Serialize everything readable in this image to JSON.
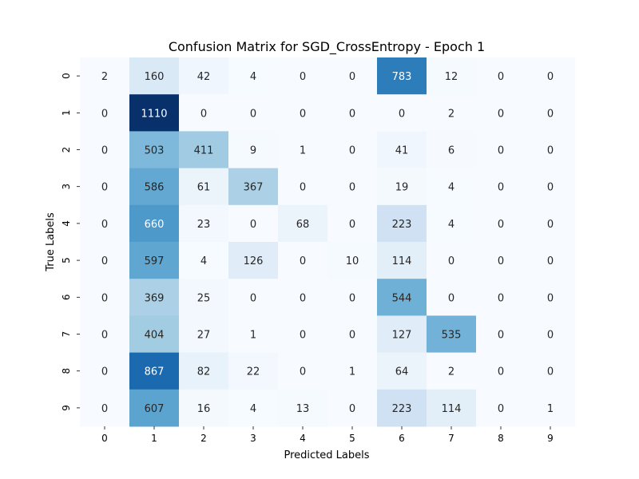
{
  "chart_data": {
    "type": "heatmap",
    "title": "Confusion Matrix for SGD_CrossEntropy - Epoch 1",
    "xlabel": "Predicted Labels",
    "ylabel": "True Labels",
    "x_categories": [
      "0",
      "1",
      "2",
      "3",
      "4",
      "5",
      "6",
      "7",
      "8",
      "9"
    ],
    "y_categories": [
      "0",
      "1",
      "2",
      "3",
      "4",
      "5",
      "6",
      "7",
      "8",
      "9"
    ],
    "matrix": [
      [
        2,
        160,
        42,
        4,
        0,
        0,
        783,
        12,
        0,
        0
      ],
      [
        0,
        1110,
        0,
        0,
        0,
        0,
        0,
        2,
        0,
        0
      ],
      [
        0,
        503,
        411,
        9,
        1,
        0,
        41,
        6,
        0,
        0
      ],
      [
        0,
        586,
        61,
        367,
        0,
        0,
        19,
        4,
        0,
        0
      ],
      [
        0,
        660,
        23,
        0,
        68,
        0,
        223,
        4,
        0,
        0
      ],
      [
        0,
        597,
        4,
        126,
        0,
        10,
        114,
        0,
        0,
        0
      ],
      [
        0,
        369,
        25,
        0,
        0,
        0,
        544,
        0,
        0,
        0
      ],
      [
        0,
        404,
        27,
        1,
        0,
        0,
        127,
        535,
        0,
        0
      ],
      [
        0,
        867,
        82,
        22,
        0,
        1,
        64,
        2,
        0,
        0
      ],
      [
        0,
        607,
        16,
        4,
        13,
        0,
        223,
        114,
        0,
        1
      ]
    ],
    "value_range": [
      0,
      1110
    ],
    "colormap": "Blues",
    "colors": {
      "low": "#f7fbff",
      "high": "#08306b"
    },
    "grid": false,
    "legend": "none"
  }
}
